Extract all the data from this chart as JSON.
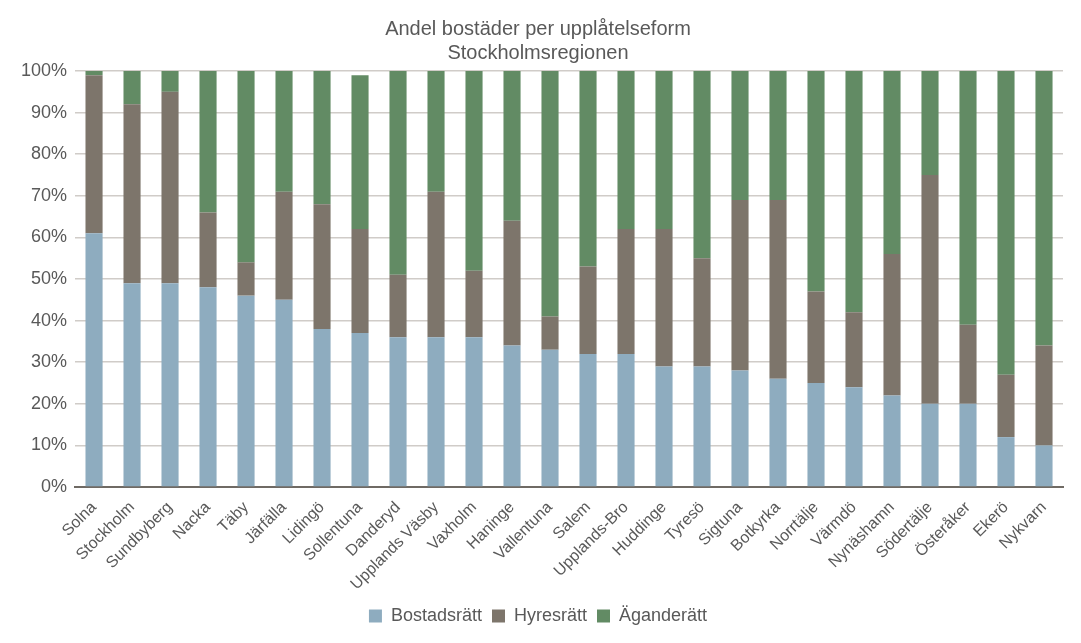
{
  "chart_data": {
    "type": "bar",
    "title": "Andel bostäder per upplåtelseform",
    "subtitle": "Stockholmsregionen",
    "stacked": true,
    "categories": [
      "Solna",
      "Stockholm",
      "Sundbyberg",
      "Nacka",
      "Täby",
      "Järfälla",
      "Lidingö",
      "Sollentuna",
      "Danderyd",
      "Upplands Väsby",
      "Vaxholm",
      "Haninge",
      "Vallentuna",
      "Salem",
      "Upplands-Bro",
      "Huddinge",
      "Tyresö",
      "Sigtuna",
      "Botkyrka",
      "Norrtälje",
      "Värmdö",
      "Nynäshamn",
      "Södertälje",
      "Österåker",
      "Ekerö",
      "Nykvarn"
    ],
    "series": [
      {
        "name": "Bostadsrätt",
        "color": "#8eacbf",
        "values": [
          61,
          49,
          49,
          48,
          46,
          45,
          38,
          37,
          36,
          36,
          36,
          34,
          33,
          32,
          32,
          29,
          29,
          28,
          26,
          25,
          24,
          22,
          20,
          20,
          12,
          10
        ]
      },
      {
        "name": "Hyresrätt",
        "color": "#7d756b",
        "values": [
          38,
          43,
          46,
          18,
          8,
          26,
          30,
          25,
          15,
          35,
          16,
          30,
          8,
          21,
          30,
          33,
          26,
          41,
          43,
          22,
          18,
          34,
          55,
          19,
          15,
          24
        ]
      },
      {
        "name": "Äganderätt",
        "color": "#628b64",
        "values": [
          1,
          8,
          5,
          34,
          46,
          29,
          32,
          37,
          49,
          29,
          48,
          36,
          59,
          47,
          38,
          38,
          45,
          31,
          31,
          53,
          58,
          44,
          25,
          61,
          73,
          66
        ]
      }
    ],
    "ylim": [
      0,
      100
    ],
    "yticks": [
      {
        "value": 0,
        "label": "0%"
      },
      {
        "value": 10,
        "label": "10%"
      },
      {
        "value": 20,
        "label": "20%"
      },
      {
        "value": 30,
        "label": "30%"
      },
      {
        "value": 40,
        "label": "40%"
      },
      {
        "value": 50,
        "label": "50%"
      },
      {
        "value": 60,
        "label": "60%"
      },
      {
        "value": 70,
        "label": "70%"
      },
      {
        "value": 80,
        "label": "80%"
      },
      {
        "value": 90,
        "label": "90%"
      },
      {
        "value": 100,
        "label": "100%"
      }
    ],
    "grid": "y",
    "legend": "bottom"
  }
}
